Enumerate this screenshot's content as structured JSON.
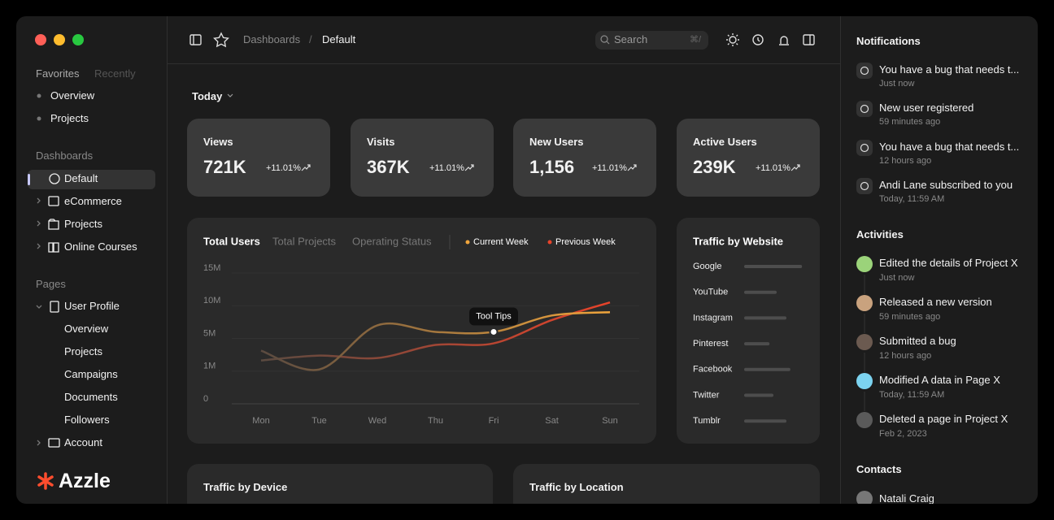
{
  "sidebar": {
    "tabs": [
      "Favorites",
      "Recently"
    ],
    "favorites": [
      "Overview",
      "Projects"
    ],
    "dashboards_heading": "Dashboards",
    "dashboards": [
      "Default",
      "eCommerce",
      "Projects",
      "Online Courses"
    ],
    "pages_heading": "Pages",
    "user_profile": "User Profile",
    "user_profile_items": [
      "Overview",
      "Projects",
      "Campaigns",
      "Documents",
      "Followers"
    ],
    "account": "Account",
    "brand": "Azzle"
  },
  "topbar": {
    "breadcrumb": [
      "Dashboards",
      "/",
      "Default"
    ],
    "search": "Search",
    "shortcut": "⌘/"
  },
  "main": {
    "period": "Today",
    "stats": [
      {
        "label": "Views",
        "value": "721K",
        "change": "+11.01%"
      },
      {
        "label": "Visits",
        "value": "367K",
        "change": "+11.01%"
      },
      {
        "label": "New Users",
        "value": "1,156",
        "change": "+11.01%"
      },
      {
        "label": "Active Users",
        "value": "239K",
        "change": "+11.01%"
      }
    ],
    "bottom_cards": [
      "Traffic by Device",
      "Traffic by Location"
    ]
  },
  "chart_data": [
    {
      "type": "line",
      "title": "Total Users",
      "tabs": [
        "Total Projects",
        "Operating Status"
      ],
      "annotation": "Tool Tips",
      "categories": [
        "Mon",
        "Tue",
        "Wed",
        "Thu",
        "Fri",
        "Sat",
        "Sun"
      ],
      "series": [
        {
          "name": "Current Week",
          "color": "#f0a53c",
          "values": [
            3500000,
            1200000,
            7000000,
            6000000,
            6000000,
            8500000,
            9000000
          ]
        },
        {
          "name": "Previous Week",
          "color": "#e8432a",
          "values": [
            2300000,
            2900000,
            2600000,
            4200000,
            4400000,
            7800000,
            10500000
          ]
        }
      ],
      "ylim": [
        0,
        15000000
      ],
      "yticks": [
        {
          "value": 0,
          "label": "0"
        },
        {
          "value": 1000000,
          "label": "1M"
        },
        {
          "value": 5000000,
          "label": "5M"
        },
        {
          "value": 10000000,
          "label": "10M"
        },
        {
          "value": 15000000,
          "label": "15M"
        }
      ],
      "grid": true
    },
    {
      "type": "bar",
      "title": "Traffic by Website",
      "orientation": "horizontal",
      "categories": [
        "Google",
        "YouTube",
        "Instagram",
        "Pinterest",
        "Facebook",
        "Twitter",
        "Tumblr"
      ],
      "values": [
        89,
        50,
        65,
        39,
        71,
        45,
        65
      ],
      "color": "#4d4d4d"
    }
  ],
  "notifications": {
    "title": "Notifications",
    "items": [
      {
        "text": "You have a bug that needs t...",
        "time": "Just now"
      },
      {
        "text": "New user registered",
        "time": "59 minutes ago"
      },
      {
        "text": "You have a bug that needs t...",
        "time": "12 hours ago"
      },
      {
        "text": "Andi Lane subscribed to you",
        "time": "Today, 11:59 AM"
      }
    ]
  },
  "activities": {
    "title": "Activities",
    "items": [
      {
        "text": "Edited the details of Project X",
        "time": "Just now"
      },
      {
        "text": "Released a new version",
        "time": "59 minutes ago"
      },
      {
        "text": "Submitted a bug",
        "time": "12 hours ago"
      },
      {
        "text": "Modified A data in Page X",
        "time": "Today, 11:59 AM"
      },
      {
        "text": "Deleted a page in Project X",
        "time": "Feb 2, 2023"
      }
    ]
  },
  "contacts": {
    "title": "Contacts",
    "items": [
      "Natali Craig"
    ]
  }
}
